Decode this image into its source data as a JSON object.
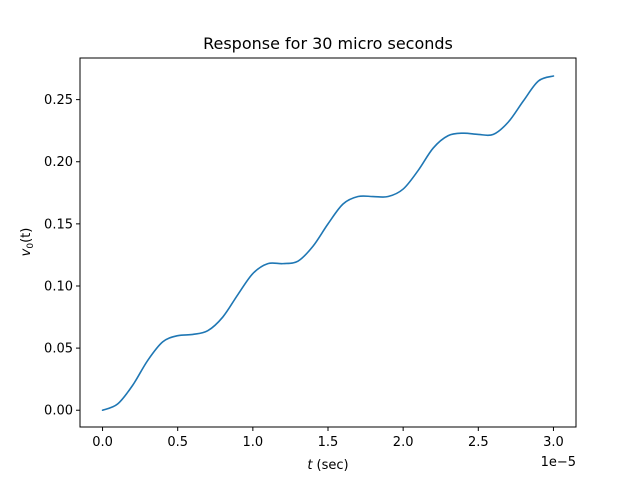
{
  "chart_data": {
    "type": "line",
    "title": "Response for 30 micro seconds",
    "xlabel_var": "t",
    "xlabel_unit": "(sec)",
    "ylabel_var": "v",
    "ylabel_sub": "0",
    "ylabel_arg": "(t)",
    "x_offset_label": "1e−5",
    "xlim": [
      -1.5e-06,
      3.15e-05
    ],
    "ylim": [
      -0.0135,
      0.2835
    ],
    "x_ticks": [
      {
        "value": 0.0,
        "label": "0.0"
      },
      {
        "value": 5e-06,
        "label": "0.5"
      },
      {
        "value": 1e-05,
        "label": "1.0"
      },
      {
        "value": 1.5e-05,
        "label": "1.5"
      },
      {
        "value": 2e-05,
        "label": "2.0"
      },
      {
        "value": 2.5e-05,
        "label": "2.5"
      },
      {
        "value": 3e-05,
        "label": "3.0"
      }
    ],
    "y_ticks": [
      {
        "value": 0.0,
        "label": "0.00"
      },
      {
        "value": 0.05,
        "label": "0.05"
      },
      {
        "value": 0.1,
        "label": "0.10"
      },
      {
        "value": 0.15,
        "label": "0.15"
      },
      {
        "value": 0.2,
        "label": "0.20"
      },
      {
        "value": 0.25,
        "label": "0.25"
      }
    ],
    "grid": false,
    "series": [
      {
        "color": "#1f77b4",
        "x": [
          0,
          1e-06,
          2e-06,
          3e-06,
          4e-06,
          5e-06,
          6e-06,
          7e-06,
          8e-06,
          9e-06,
          1e-05,
          1.1e-05,
          1.2e-05,
          1.3e-05,
          1.4e-05,
          1.5e-05,
          1.6e-05,
          1.7e-05,
          1.8e-05,
          1.9e-05,
          2e-05,
          2.1e-05,
          2.2e-05,
          2.3e-05,
          2.4e-05,
          2.5e-05,
          2.6e-05,
          2.7e-05,
          2.8e-05,
          2.9e-05,
          3e-05
        ],
        "y": [
          0.0,
          0.005,
          0.02,
          0.04,
          0.055,
          0.06,
          0.061,
          0.064,
          0.075,
          0.093,
          0.11,
          0.118,
          0.118,
          0.12,
          0.132,
          0.15,
          0.166,
          0.172,
          0.172,
          0.172,
          0.178,
          0.193,
          0.211,
          0.221,
          0.223,
          0.222,
          0.222,
          0.232,
          0.249,
          0.265,
          0.269
        ]
      }
    ]
  }
}
